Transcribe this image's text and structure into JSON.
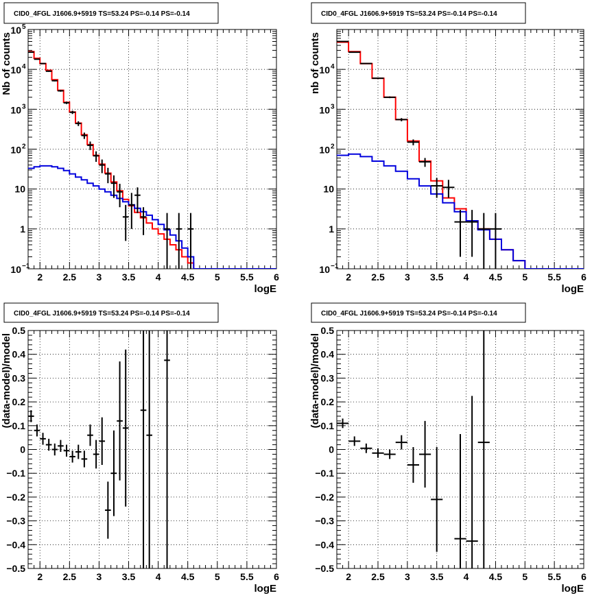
{
  "chart_data": [
    {
      "panel": "top-left",
      "type": "histogram",
      "title": "CID0_4FGL J1606.9+5919 TS=53.24 PS=-0.14 PS=-0.14",
      "xlabel": "logE",
      "ylabel": "Nb of counts",
      "xlim": [
        1.8,
        6.0
      ],
      "ylim": [
        0.1,
        100000
      ],
      "yscale": "log",
      "grid": true,
      "x_ticks": [
        "2",
        "2.5",
        "3",
        "3.5",
        "4",
        "4.5",
        "5",
        "5.5",
        "6"
      ],
      "y_ticks": [
        {
          "value": 0.1,
          "base": "10",
          "exp": "−1"
        },
        {
          "value": 1,
          "label": "1"
        },
        {
          "value": 10,
          "label": "10"
        },
        {
          "value": 100,
          "base": "10",
          "exp": "2"
        },
        {
          "value": 1000,
          "base": "10",
          "exp": "3"
        },
        {
          "value": 10000,
          "base": "10",
          "exp": "4"
        },
        {
          "value": 100000,
          "base": "10",
          "exp": "5"
        }
      ],
      "bin_width": 0.1,
      "series": [
        {
          "color": "#ff0000",
          "kind": "step",
          "x": [
            1.8,
            1.9,
            2.0,
            2.1,
            2.2,
            2.3,
            2.4,
            2.5,
            2.6,
            2.7,
            2.8,
            2.9,
            3.0,
            3.1,
            3.2,
            3.3,
            3.4,
            3.5,
            3.6,
            3.7,
            3.8,
            3.9,
            4.0,
            4.1,
            4.2,
            4.3,
            4.4,
            4.5,
            4.6,
            4.7,
            4.8,
            4.9,
            5.0,
            5.1,
            5.2,
            5.3,
            5.4,
            5.5,
            5.6,
            5.7,
            5.8,
            5.9
          ],
          "y": [
            28000,
            19000,
            14000,
            9500,
            5500,
            3000,
            1500,
            850,
            450,
            230,
            130,
            70,
            42,
            25,
            15,
            9,
            5.5,
            3.8,
            2.6,
            1.9,
            1.4,
            1.0,
            0.75,
            0.55,
            0.4,
            0.3,
            0.2,
            0.14,
            0.1,
            0.1,
            0.1,
            0.1,
            0.1,
            0.1,
            0.1,
            0.1,
            0.1,
            0.1,
            0.1,
            0.1,
            0.1,
            0.1
          ]
        },
        {
          "color": "#0000dd",
          "kind": "step",
          "x": [
            1.8,
            1.9,
            2.0,
            2.1,
            2.2,
            2.3,
            2.4,
            2.5,
            2.6,
            2.7,
            2.8,
            2.9,
            3.0,
            3.1,
            3.2,
            3.3,
            3.4,
            3.5,
            3.6,
            3.7,
            3.8,
            3.9,
            4.0,
            4.1,
            4.2,
            4.3,
            4.4,
            4.5,
            4.6,
            4.7,
            4.8,
            4.9,
            5.0,
            5.1,
            5.2,
            5.3,
            5.4,
            5.5,
            5.6,
            5.7,
            5.8,
            5.9
          ],
          "y": [
            33,
            36,
            38,
            38,
            36,
            33,
            29,
            24,
            20,
            17,
            14,
            12,
            10,
            8.5,
            7,
            5.8,
            4.8,
            4,
            3.3,
            2.7,
            2.2,
            1.7,
            1.3,
            0.95,
            0.7,
            0.5,
            0.33,
            0.2,
            0.1,
            0.1,
            0.1,
            0.1,
            0.1,
            0.1,
            0.1,
            0.1,
            0.1,
            0.1,
            0.1,
            0.1,
            0.1,
            0.1
          ]
        }
      ],
      "data_points": {
        "color": "#000000",
        "x": [
          1.85,
          1.95,
          2.05,
          2.15,
          2.25,
          2.35,
          2.45,
          2.55,
          2.65,
          2.75,
          2.85,
          2.95,
          3.05,
          3.15,
          3.25,
          3.35,
          3.45,
          3.55,
          3.65,
          3.75,
          4.15,
          4.35,
          4.55
        ],
        "y": [
          27000,
          18000,
          14000,
          9000,
          5200,
          2900,
          1450,
          840,
          440,
          220,
          125,
          68,
          40,
          24,
          14,
          8.5,
          2,
          4,
          7,
          2,
          1,
          1,
          1
        ],
        "yerr_low": [
          500,
          400,
          300,
          300,
          200,
          150,
          100,
          80,
          60,
          40,
          30,
          20,
          15,
          10,
          8,
          5,
          1.5,
          3,
          4.5,
          1.3,
          0.95,
          0.95,
          0.95
        ],
        "yerr_high": [
          500,
          400,
          300,
          300,
          200,
          150,
          100,
          80,
          60,
          40,
          30,
          20,
          15,
          10,
          8,
          5,
          2,
          4,
          4,
          1.5,
          1.5,
          1.5,
          1.5
        ]
      }
    },
    {
      "panel": "top-right",
      "type": "histogram",
      "title": "CID0_4FGL J1606.9+5919 TS=53.24 PS=-0.14 PS=-0.14",
      "xlabel": "logE",
      "ylabel": "nb of counts",
      "xlim": [
        1.8,
        6.0
      ],
      "ylim": [
        0.1,
        100000
      ],
      "yscale": "log",
      "grid": true,
      "x_ticks": [
        "2",
        "2.5",
        "3",
        "3.5",
        "4",
        "4.5",
        "5",
        "5.5",
        "6"
      ],
      "y_ticks": [
        {
          "value": 0.1,
          "base": "10",
          "exp": "−1"
        },
        {
          "value": 1,
          "label": "1"
        },
        {
          "value": 10,
          "label": "10"
        },
        {
          "value": 100,
          "base": "10",
          "exp": "2"
        },
        {
          "value": 1000,
          "base": "10",
          "exp": "3"
        },
        {
          "value": 10000,
          "base": "10",
          "exp": "4"
        }
      ],
      "bin_width": 0.2,
      "series": [
        {
          "color": "#ff0000",
          "kind": "step",
          "x": [
            1.8,
            2.0,
            2.2,
            2.4,
            2.6,
            2.8,
            3.0,
            3.2,
            3.4,
            3.6,
            3.8,
            4.0,
            4.2,
            4.4,
            4.6,
            4.8,
            5.0,
            5.2,
            5.4,
            5.6,
            5.8
          ],
          "y": [
            48000,
            28000,
            14000,
            6000,
            2000,
            550,
            160,
            50,
            16,
            6,
            3.2,
            1.6,
            1.0,
            0.55,
            0.3,
            0.16,
            0.1,
            0.1,
            0.1,
            0.1,
            0.1
          ]
        },
        {
          "color": "#0000dd",
          "kind": "step",
          "x": [
            1.8,
            2.0,
            2.2,
            2.4,
            2.6,
            2.8,
            3.0,
            3.2,
            3.4,
            3.6,
            3.8,
            4.0,
            4.2,
            4.4,
            4.6,
            4.8,
            5.0,
            5.2,
            5.4,
            5.6,
            5.8
          ],
          "y": [
            70,
            75,
            65,
            50,
            38,
            28,
            18,
            12,
            7.5,
            4.5,
            2.7,
            1.6,
            0.95,
            0.55,
            0.3,
            0.16,
            0.1,
            0.1,
            0.1,
            0.1,
            0.1
          ]
        }
      ],
      "data_points": {
        "color": "#000000",
        "x": [
          1.9,
          2.1,
          2.3,
          2.5,
          2.7,
          2.9,
          3.1,
          3.3,
          3.5,
          3.7,
          3.9,
          4.1,
          4.3,
          4.5
        ],
        "y": [
          50000,
          27000,
          14000,
          6000,
          2000,
          550,
          150,
          48,
          12,
          11,
          1.5,
          1.5,
          1,
          1
        ],
        "yerr_low": [
          800,
          600,
          400,
          200,
          100,
          50,
          25,
          12,
          6,
          5,
          1.3,
          1.3,
          0.95,
          0.95
        ],
        "yerr_high": [
          800,
          600,
          400,
          200,
          100,
          50,
          25,
          12,
          7,
          6,
          1.5,
          1.5,
          1.5,
          1.5
        ]
      }
    },
    {
      "panel": "bottom-left",
      "type": "scatter",
      "title": "CID0_4FGL J1606.9+5919 TS=53.24 PS=-0.14 PS=-0.14",
      "xlabel": "logE",
      "ylabel": "(data-model)/model",
      "xlim": [
        1.8,
        6.0
      ],
      "ylim": [
        -0.5,
        0.5
      ],
      "grid": true,
      "x_ticks": [
        "2",
        "2.5",
        "3",
        "3.5",
        "4",
        "4.5",
        "5",
        "5.5",
        "6"
      ],
      "y_ticks": [
        "−0.5",
        "−0.4",
        "−0.3",
        "−0.2",
        "−0.1",
        "0",
        "0.1",
        "0.2",
        "0.3",
        "0.4",
        "0.5"
      ],
      "bin_half_width": 0.05,
      "data_points": {
        "color": "#000000",
        "x": [
          1.85,
          1.95,
          2.05,
          2.15,
          2.25,
          2.35,
          2.45,
          2.55,
          2.65,
          2.75,
          2.85,
          2.95,
          3.05,
          3.15,
          3.25,
          3.35,
          3.45,
          3.75,
          3.85,
          4.15
        ],
        "y": [
          0.14,
          0.08,
          0.045,
          0.02,
          0.0,
          0.015,
          -0.005,
          -0.03,
          -0.01,
          -0.04,
          0.06,
          -0.02,
          0.035,
          -0.255,
          -0.1,
          0.12,
          0.09,
          0.165,
          0.06,
          0.375
        ],
        "yerr": [
          0.025,
          0.025,
          0.025,
          0.025,
          0.025,
          0.025,
          0.025,
          0.025,
          0.03,
          0.035,
          0.045,
          0.06,
          0.1,
          0.12,
          0.18,
          0.25,
          0.33,
          1.0,
          1.0,
          1.0
        ]
      }
    },
    {
      "panel": "bottom-right",
      "type": "scatter",
      "title": "CID0_4FGL J1606.9+5919 TS=53.24 PS=-0.14 PS=-0.14",
      "xlabel": "logE",
      "ylabel": "(data-model)/model",
      "xlim": [
        1.8,
        6.0
      ],
      "ylim": [
        -0.5,
        0.5
      ],
      "grid": true,
      "x_ticks": [
        "2",
        "2.5",
        "3",
        "3.5",
        "4",
        "4.5",
        "5",
        "5.5",
        "6"
      ],
      "y_ticks": [
        "−0.5",
        "−0.4",
        "−0.3",
        "−0.2",
        "−0.1",
        "0",
        "0.1",
        "0.2",
        "0.3",
        "0.4",
        "0.5"
      ],
      "bin_half_width": 0.1,
      "data_points": {
        "color": "#000000",
        "x": [
          1.9,
          2.1,
          2.3,
          2.5,
          2.7,
          2.9,
          3.1,
          3.3,
          3.5,
          3.9,
          4.1,
          4.3
        ],
        "y": [
          0.11,
          0.035,
          0.005,
          -0.015,
          -0.02,
          0.03,
          -0.065,
          -0.02,
          -0.21,
          -0.375,
          -0.385,
          0.03
        ],
        "yerr": [
          0.02,
          0.02,
          0.02,
          0.02,
          0.02,
          0.03,
          0.075,
          0.14,
          0.22,
          0.44,
          0.61,
          1.0
        ]
      }
    }
  ]
}
